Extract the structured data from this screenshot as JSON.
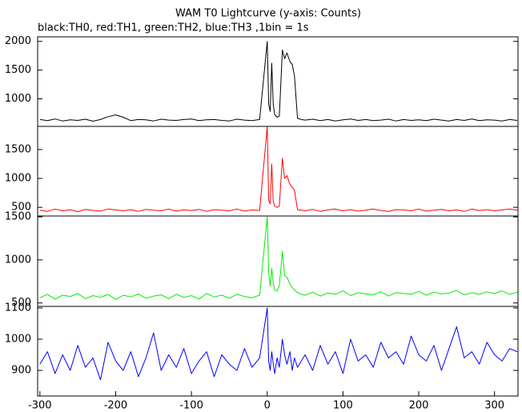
{
  "title": "WAM T0 Lightcurve (y-axis: Counts)",
  "subtitle": "black:TH0, red:TH1, green:TH2, blue:TH3 ,1bin = 1s",
  "chart_data": [
    {
      "type": "line",
      "x": [
        -300,
        -290,
        -280,
        -270,
        -260,
        -250,
        -240,
        -230,
        -220,
        -210,
        -200,
        -190,
        -180,
        -170,
        -160,
        -150,
        -140,
        -130,
        -120,
        -110,
        -100,
        -90,
        -80,
        -70,
        -60,
        -50,
        -40,
        -30,
        -20,
        -10,
        0,
        2,
        4,
        6,
        8,
        10,
        13,
        16,
        20,
        23,
        26,
        30,
        33,
        36,
        40,
        45,
        50,
        60,
        70,
        80,
        90,
        100,
        110,
        120,
        130,
        140,
        150,
        160,
        170,
        180,
        190,
        200,
        210,
        220,
        230,
        240,
        250,
        260,
        270,
        280,
        290,
        300,
        310,
        320,
        330
      ],
      "xlim": [
        -303,
        331
      ],
      "ylim": [
        520,
        2080
      ],
      "yticks": [
        1000,
        1500,
        2000
      ],
      "series": [
        {
          "color": "#000000",
          "values": [
            640,
            620,
            650,
            615,
            635,
            625,
            645,
            610,
            640,
            690,
            720,
            680,
            620,
            640,
            635,
            615,
            645,
            630,
            625,
            640,
            650,
            620,
            635,
            640,
            625,
            615,
            645,
            630,
            620,
            640,
            2000,
            900,
            780,
            1620,
            900,
            720,
            680,
            700,
            1850,
            1700,
            1800,
            1650,
            1600,
            1400,
            660,
            640,
            630,
            645,
            620,
            640,
            615,
            635,
            650,
            625,
            640,
            620,
            630,
            645,
            615,
            640,
            625,
            635,
            620,
            645,
            630,
            615,
            640,
            625,
            650,
            620,
            635,
            630,
            615,
            640,
            625
          ]
        }
      ]
    },
    {
      "type": "line",
      "x": [
        -300,
        -290,
        -280,
        -270,
        -260,
        -250,
        -240,
        -230,
        -220,
        -210,
        -200,
        -190,
        -180,
        -170,
        -160,
        -150,
        -140,
        -130,
        -120,
        -110,
        -100,
        -90,
        -80,
        -70,
        -60,
        -50,
        -40,
        -30,
        -20,
        -10,
        0,
        2,
        4,
        6,
        8,
        10,
        13,
        16,
        20,
        23,
        26,
        30,
        33,
        36,
        40,
        45,
        50,
        60,
        70,
        80,
        90,
        100,
        110,
        120,
        130,
        140,
        150,
        160,
        170,
        180,
        190,
        200,
        210,
        220,
        230,
        240,
        250,
        260,
        270,
        280,
        290,
        300,
        310,
        320,
        330
      ],
      "xlim": [
        -303,
        331
      ],
      "ylim": [
        350,
        1900
      ],
      "yticks": [
        500,
        1000,
        1500
      ],
      "series": [
        {
          "color": "#ff0000",
          "values": [
            450,
            430,
            470,
            440,
            460,
            425,
            465,
            445,
            435,
            470,
            455,
            440,
            460,
            430,
            465,
            450,
            440,
            470,
            435,
            455,
            445,
            465,
            430,
            460,
            450,
            440,
            470,
            435,
            455,
            445,
            1900,
            620,
            560,
            1250,
            600,
            520,
            500,
            520,
            1350,
            1000,
            1050,
            900,
            850,
            800,
            460,
            450,
            440,
            465,
            430,
            455,
            470,
            440,
            460,
            435,
            450,
            470,
            445,
            430,
            460,
            455,
            440,
            470,
            435,
            450,
            465,
            440,
            455,
            430,
            470,
            445,
            460,
            440,
            455,
            470,
            450
          ]
        }
      ]
    },
    {
      "type": "line",
      "x": [
        -300,
        -290,
        -280,
        -270,
        -260,
        -250,
        -240,
        -230,
        -220,
        -210,
        -200,
        -190,
        -180,
        -170,
        -160,
        -150,
        -140,
        -130,
        -120,
        -110,
        -100,
        -90,
        -80,
        -70,
        -60,
        -50,
        -40,
        -30,
        -20,
        -10,
        0,
        2,
        4,
        6,
        8,
        10,
        13,
        16,
        20,
        23,
        26,
        30,
        33,
        36,
        40,
        45,
        50,
        60,
        70,
        80,
        90,
        100,
        110,
        120,
        130,
        140,
        150,
        160,
        170,
        180,
        190,
        200,
        210,
        220,
        230,
        240,
        250,
        260,
        270,
        280,
        290,
        300,
        310,
        320,
        330
      ],
      "xlim": [
        -303,
        331
      ],
      "ylim": [
        460,
        1510
      ],
      "yticks": [
        500,
        1000,
        1500
      ],
      "series": [
        {
          "color": "#00ee00",
          "values": [
            560,
            600,
            545,
            590,
            575,
            610,
            550,
            585,
            565,
            600,
            540,
            590,
            570,
            605,
            555,
            580,
            595,
            550,
            600,
            565,
            585,
            545,
            610,
            570,
            590,
            555,
            600,
            575,
            560,
            590,
            1500,
            850,
            700,
            900,
            720,
            650,
            640,
            700,
            1100,
            820,
            800,
            720,
            680,
            650,
            620,
            600,
            590,
            625,
            580,
            615,
            600,
            640,
            585,
            620,
            605,
            595,
            630,
            580,
            620,
            610,
            600,
            635,
            590,
            625,
            605,
            615,
            645,
            595,
            620,
            600,
            630,
            610,
            640,
            600,
            625
          ]
        }
      ]
    },
    {
      "type": "line",
      "x": [
        -300,
        -290,
        -280,
        -270,
        -260,
        -250,
        -240,
        -230,
        -220,
        -210,
        -200,
        -190,
        -180,
        -170,
        -160,
        -150,
        -140,
        -130,
        -120,
        -110,
        -100,
        -90,
        -80,
        -70,
        -60,
        -50,
        -40,
        -30,
        -20,
        -10,
        0,
        2,
        4,
        6,
        8,
        10,
        13,
        16,
        20,
        23,
        26,
        30,
        33,
        36,
        40,
        45,
        50,
        60,
        70,
        80,
        90,
        100,
        110,
        120,
        130,
        140,
        150,
        160,
        170,
        180,
        190,
        200,
        210,
        220,
        230,
        240,
        250,
        260,
        270,
        280,
        290,
        300,
        310,
        320,
        330
      ],
      "xlim": [
        -303,
        331
      ],
      "ylim": [
        818,
        1105
      ],
      "yticks": [
        900,
        1000,
        1100
      ],
      "xticks": [
        -300,
        -200,
        -100,
        0,
        100,
        200,
        300
      ],
      "series": [
        {
          "color": "#0000ff",
          "values": [
            920,
            960,
            890,
            950,
            900,
            980,
            910,
            940,
            870,
            990,
            930,
            900,
            960,
            880,
            940,
            1020,
            900,
            950,
            910,
            970,
            890,
            930,
            960,
            880,
            950,
            920,
            900,
            970,
            910,
            940,
            1100,
            930,
            900,
            960,
            920,
            890,
            940,
            910,
            1000,
            950,
            920,
            960,
            900,
            940,
            910,
            930,
            950,
            900,
            980,
            920,
            960,
            890,
            1000,
            930,
            950,
            910,
            990,
            940,
            960,
            920,
            1010,
            950,
            930,
            980,
            900,
            970,
            1040,
            940,
            960,
            920,
            990,
            950,
            930,
            970,
            960
          ]
        }
      ]
    }
  ]
}
